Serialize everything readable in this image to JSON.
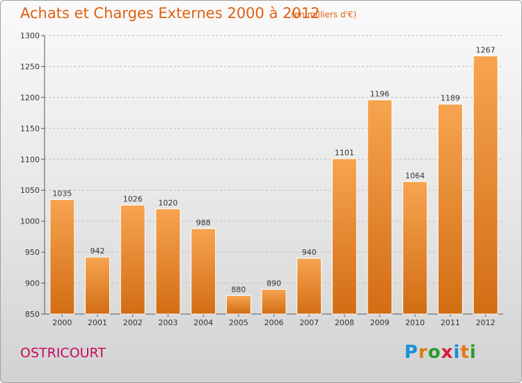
{
  "title": "Achats et Charges Externes 2000 à 2012",
  "subtitle": "(en milliers d'€)",
  "commune": "OSTRICOURT",
  "logo": {
    "letters": [
      "P",
      "r",
      "o",
      "x",
      "i",
      "t",
      "i"
    ],
    "colors": [
      "#1a8fd6",
      "#e07a10",
      "#2a9a2a",
      "#d81b3a",
      "#1a8fd6",
      "#e07a10",
      "#2a9a2a"
    ]
  },
  "chart_data": {
    "type": "bar",
    "title": "Achats et Charges Externes 2000 à 2012",
    "subtitle": "(en milliers d'€)",
    "categories": [
      "2000",
      "2001",
      "2002",
      "2003",
      "2004",
      "2005",
      "2006",
      "2007",
      "2008",
      "2009",
      "2010",
      "2011",
      "2012"
    ],
    "values": [
      1035,
      942,
      1026,
      1020,
      988,
      880,
      890,
      940,
      1101,
      1196,
      1064,
      1189,
      1267
    ],
    "ylim": [
      850,
      1300
    ],
    "yticks": [
      850,
      900,
      950,
      1000,
      1050,
      1100,
      1150,
      1200,
      1250,
      1300
    ],
    "grid": true,
    "bar_color": "#f0902e"
  }
}
